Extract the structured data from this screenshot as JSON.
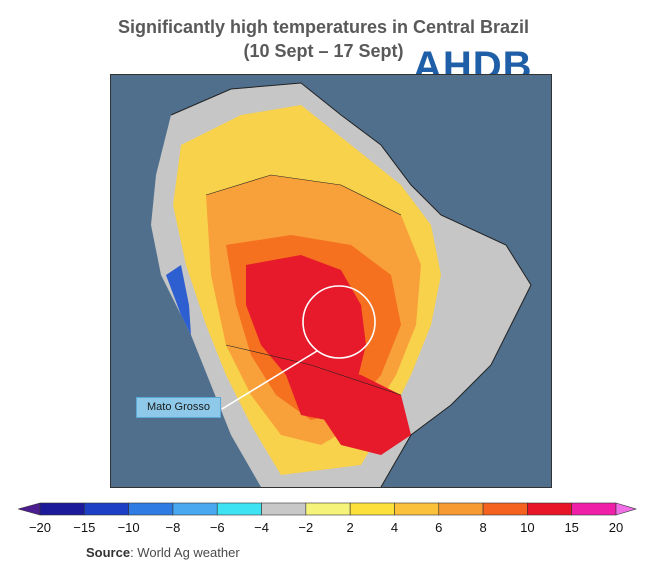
{
  "title": {
    "line1": "Significantly high temperatures in Central Brazil",
    "line2": "(10 Sept – 17 Sept)"
  },
  "logo": {
    "text": "AHDB",
    "color": "#1f5fa8"
  },
  "map": {
    "ocean_color": "#4f6f8c",
    "highlight_region_label": "Mato Grosso",
    "callout_color": "#8ec9ea"
  },
  "colorbar": {
    "ticks": [
      "−20",
      "−15",
      "−10",
      "−8",
      "−6",
      "−4",
      "−2",
      "2",
      "4",
      "6",
      "8",
      "10",
      "15",
      "20"
    ],
    "colors": [
      "#4b1d8f",
      "#1a1a9a",
      "#1c3fc6",
      "#2e7be3",
      "#4aa8f0",
      "#3de3f2",
      "#c8c8c8",
      "#f6f37a",
      "#fde13a",
      "#fbc13a",
      "#f89a32",
      "#f5611f",
      "#e81428",
      "#f01fa8",
      "#f06fe6"
    ]
  },
  "source": {
    "label": "Source",
    "text": ": World Ag weather"
  }
}
